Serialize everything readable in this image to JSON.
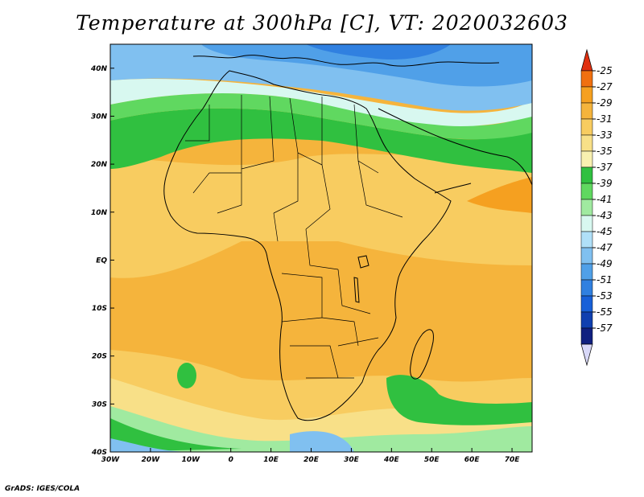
{
  "title": "Temperature at 300hPa [C], VT: 2020032603",
  "footer": "GrADS: IGES/COLA",
  "map": {
    "lon_range": [
      -30,
      75
    ],
    "lat_range": [
      -40,
      45
    ],
    "lon_ticks": [
      {
        "value": -30,
        "label": "30W"
      },
      {
        "value": -20,
        "label": "20W"
      },
      {
        "value": -10,
        "label": "10W"
      },
      {
        "value": 0,
        "label": "0"
      },
      {
        "value": 10,
        "label": "10E"
      },
      {
        "value": 20,
        "label": "20E"
      },
      {
        "value": 30,
        "label": "30E"
      },
      {
        "value": 40,
        "label": "40E"
      },
      {
        "value": 50,
        "label": "50E"
      },
      {
        "value": 60,
        "label": "60E"
      },
      {
        "value": 70,
        "label": "70E"
      }
    ],
    "lat_ticks": [
      {
        "value": 40,
        "label": "40N"
      },
      {
        "value": 30,
        "label": "30N"
      },
      {
        "value": 20,
        "label": "20N"
      },
      {
        "value": 10,
        "label": "10N"
      },
      {
        "value": 0,
        "label": "EQ"
      },
      {
        "value": -10,
        "label": "10S"
      },
      {
        "value": -20,
        "label": "20S"
      },
      {
        "value": -30,
        "label": "30S"
      },
      {
        "value": -40,
        "label": "40S"
      }
    ]
  },
  "colorbar": {
    "top_color": "#e03010",
    "bottom_color": "#d8d8f8",
    "labels": [
      "-25",
      "-27",
      "-29",
      "-31",
      "-33",
      "-35",
      "-37",
      "-39",
      "-41",
      "-43",
      "-45",
      "-47",
      "-49",
      "-51",
      "-53",
      "-55",
      "-57"
    ],
    "colors": [
      "#f07010",
      "#f5a020",
      "#f5b43c",
      "#f8cc60",
      "#f8e088",
      "#f8f0b0",
      "#30c040",
      "#60d860",
      "#a0eaa0",
      "#d8f8f0",
      "#b0e0f8",
      "#80c0f0",
      "#50a0e8",
      "#3080e0",
      "#1860d8",
      "#1040b0",
      "#102080"
    ]
  },
  "field_colors": {
    "warm": "#f5b43c",
    "mid": "#f8cc60",
    "light": "#f8e088",
    "pale": "#f8f0b0",
    "green": "#30c040",
    "lightgreen": "#60d860",
    "palegreen": "#a0eaa0",
    "cyan": "#d8f8f0",
    "blue1": "#80c0f0",
    "blue2": "#50a0e8",
    "blue3": "#3080e0",
    "orange": "#f5a020"
  }
}
